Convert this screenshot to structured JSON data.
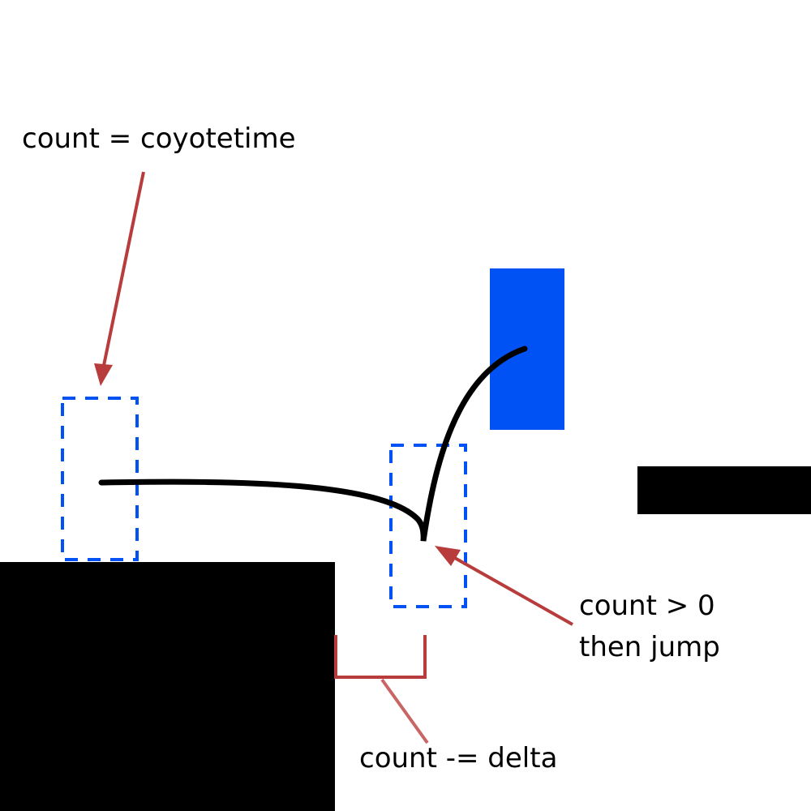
{
  "labels": {
    "coyote_reset": "count = coyotetime",
    "jump_condition_line1": "count > 0",
    "jump_condition_line2": "then jump",
    "decrement": "count -= delta"
  },
  "colors": {
    "background": "#ffffff",
    "ground": "#000000",
    "player": "#0052f5",
    "player_ghost_outline": "#0052f5",
    "annotation_arrow": "#b83c3c",
    "trajectory": "#000000"
  }
}
